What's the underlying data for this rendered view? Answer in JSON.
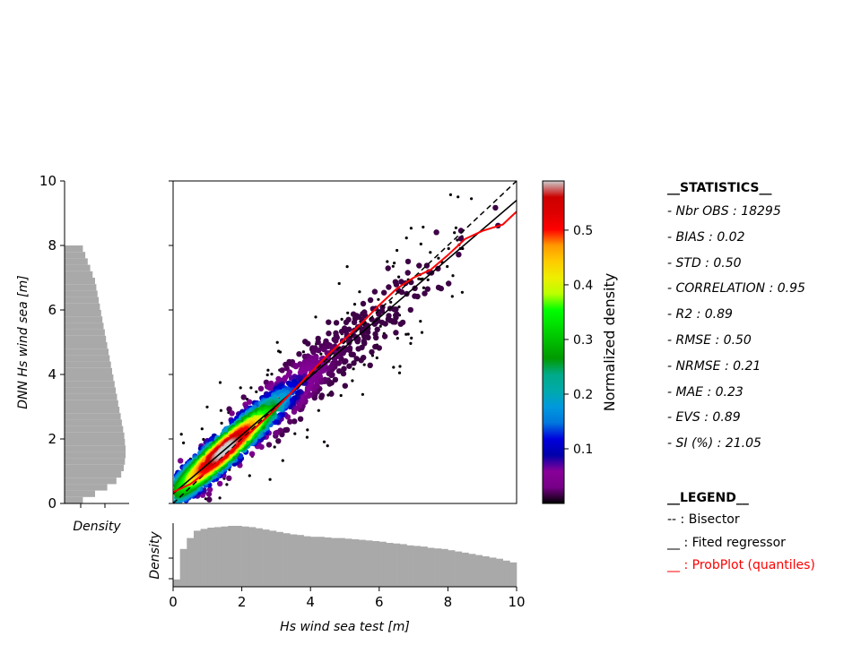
{
  "chart_data": {
    "type": "scatter",
    "xlabel": "Hs wind sea test [m]",
    "ylabel": "DNN Hs wind sea  [m]",
    "xlim": [
      0,
      10
    ],
    "ylim": [
      0,
      10
    ],
    "x_ticks": [
      "0",
      "2",
      "4",
      "6",
      "8",
      "10"
    ],
    "y_ticks": [
      "0",
      "2",
      "4",
      "6",
      "8",
      "10"
    ],
    "colorbar": {
      "label": "Normalized density",
      "range": [
        0,
        0.59
      ],
      "ticks": [
        "0.1",
        "0.2",
        "0.3",
        "0.4",
        "0.5"
      ],
      "tick_values": [
        0.1,
        0.2,
        0.3,
        0.4,
        0.5
      ],
      "colormap": "nipy_spectral"
    },
    "bisector": {
      "x": [
        0,
        10
      ],
      "y": [
        0,
        10
      ]
    },
    "regression": {
      "x": [
        0,
        10
      ],
      "y": [
        0.3,
        9.4
      ]
    },
    "probplot": {
      "x": [
        0,
        0.5,
        1,
        1.5,
        2,
        2.5,
        3,
        3.5,
        4,
        4.5,
        5,
        5.5,
        6,
        6.5,
        7,
        7.5,
        8,
        8.5,
        9,
        9.3,
        9.6,
        9.8,
        10
      ],
      "y": [
        0.35,
        0.6,
        1.0,
        1.45,
        1.95,
        2.45,
        2.95,
        3.5,
        4.05,
        4.6,
        5.1,
        5.6,
        6.15,
        6.65,
        7.0,
        7.25,
        7.7,
        8.2,
        8.45,
        8.55,
        8.65,
        8.85,
        9.05
      ]
    },
    "x_marginal": {
      "ylabel": "Density",
      "bin_width": 0.2,
      "values": [
        0.12,
        0.62,
        0.8,
        0.92,
        0.95,
        0.97,
        0.98,
        0.99,
        1.0,
        1.0,
        0.99,
        0.98,
        0.96,
        0.94,
        0.92,
        0.9,
        0.88,
        0.86,
        0.85,
        0.83,
        0.82,
        0.82,
        0.81,
        0.8,
        0.8,
        0.79,
        0.78,
        0.77,
        0.76,
        0.75,
        0.74,
        0.72,
        0.71,
        0.7,
        0.68,
        0.67,
        0.66,
        0.64,
        0.63,
        0.62,
        0.6,
        0.58,
        0.56,
        0.54,
        0.52,
        0.5,
        0.48,
        0.46,
        0.43,
        0.4
      ]
    },
    "y_marginal": {
      "xlabel": "Density",
      "bin_width": 0.2,
      "values": [
        0.3,
        0.5,
        0.7,
        0.85,
        0.93,
        0.97,
        0.99,
        1.0,
        1.0,
        0.99,
        0.98,
        0.96,
        0.94,
        0.92,
        0.9,
        0.88,
        0.86,
        0.84,
        0.82,
        0.8,
        0.78,
        0.76,
        0.74,
        0.72,
        0.7,
        0.68,
        0.66,
        0.64,
        0.62,
        0.6,
        0.58,
        0.56,
        0.54,
        0.52,
        0.5,
        0.46,
        0.42,
        0.38,
        0.34,
        0.3
      ]
    }
  },
  "statistics": {
    "header": "__STATISTICS__",
    "lines": [
      "- Nbr OBS : 18295",
      "- BIAS : 0.02",
      "- STD  : 0.50",
      "- CORRELATION : 0.95",
      "- R2 : 0.89",
      "- RMSE  : 0.50",
      "- NRMSE : 0.21",
      "- MAE : 0.23",
      "- EVS : 0.89",
      "- SI (%) : 21.05"
    ]
  },
  "legend": {
    "header": "__LEGEND__",
    "items": [
      {
        "text": "-- : Bisector",
        "color": "#000000"
      },
      {
        "text": "__ : Fited regressor",
        "color": "#000000"
      },
      {
        "text": "__ : ProbPlot (quantiles)",
        "color": "#ff0000"
      }
    ]
  },
  "colors": {
    "histogram": "#a9a9a9",
    "probplot": "#ff0000",
    "lines": "#000000"
  }
}
